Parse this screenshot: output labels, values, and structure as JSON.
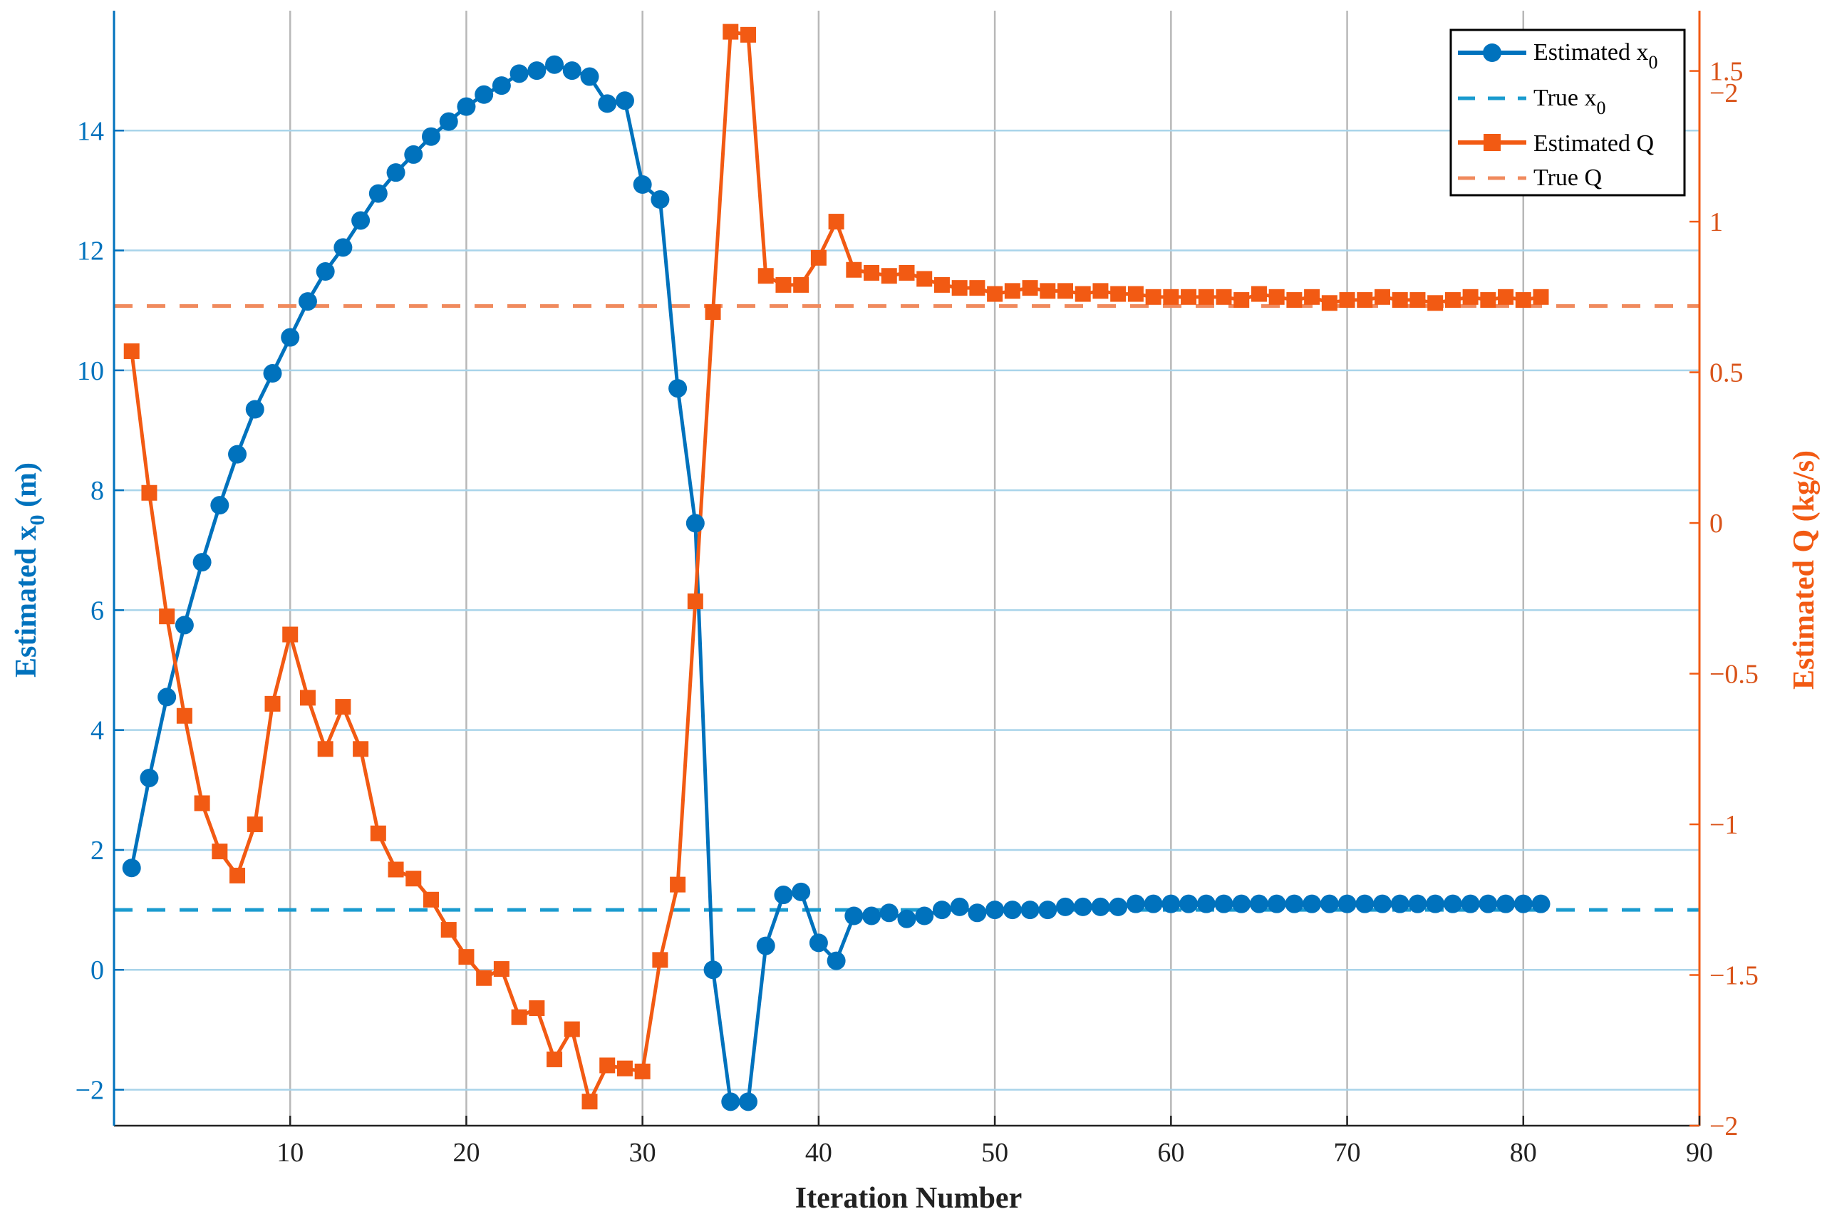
{
  "chart_data": {
    "type": "line",
    "xlabel": "Iteration Number",
    "ylabel_left": "Estimated x",
    "ylabel_left_sub": "0",
    "ylabel_left_unit": " (m)",
    "ylabel_right": "Estimated Q (kg/s)",
    "xlim": [
      0,
      90
    ],
    "xticks": [
      10,
      20,
      30,
      40,
      50,
      60,
      70,
      80,
      90
    ],
    "ylim_left": [
      -2.6,
      16
    ],
    "yticks_left": [
      -2,
      0,
      2,
      4,
      6,
      8,
      10,
      12,
      14
    ],
    "ylim_right": [
      -2.0,
      1.7
    ],
    "yticks_right": [
      -2,
      -1.5,
      -1,
      -0.5,
      0,
      0.5,
      1,
      1.5
    ],
    "right_axis_extra_tick_label": "−2",
    "grid": true,
    "legend_position": "top-right",
    "colors": {
      "x0": "#0072BD",
      "true_x0": "#1A9BCF",
      "q": "#F25A13",
      "true_q": "#F08A5D",
      "grid": "#A9D4EA"
    },
    "series": [
      {
        "name": "Estimated x",
        "name_sub": "0",
        "axis": "left",
        "style": "solid-circle",
        "x": [
          1,
          2,
          3,
          4,
          5,
          6,
          7,
          8,
          9,
          10,
          11,
          12,
          13,
          14,
          15,
          16,
          17,
          18,
          19,
          20,
          21,
          22,
          23,
          24,
          25,
          26,
          27,
          28,
          29,
          30,
          31,
          32,
          33,
          34,
          35,
          36,
          37,
          38,
          39,
          40,
          41,
          42,
          43,
          44,
          45,
          46,
          47,
          48,
          49,
          50,
          51,
          52,
          53,
          54,
          55,
          56,
          57,
          58,
          59,
          60,
          61,
          62,
          63,
          64,
          65,
          66,
          67,
          68,
          69,
          70,
          71,
          72,
          73,
          74,
          75,
          76,
          77,
          78,
          79,
          80,
          81
        ],
        "values": [
          1.7,
          3.2,
          4.55,
          5.75,
          6.8,
          7.75,
          8.6,
          9.35,
          9.95,
          10.55,
          11.15,
          11.65,
          12.05,
          12.5,
          12.95,
          13.3,
          13.6,
          13.9,
          14.15,
          14.4,
          14.6,
          14.75,
          14.95,
          15.0,
          15.1,
          15.0,
          14.9,
          14.45,
          14.5,
          13.1,
          12.85,
          9.7,
          7.45,
          0.0,
          -2.2,
          -2.2,
          0.4,
          1.25,
          1.3,
          0.45,
          0.15,
          0.9,
          0.9,
          0.95,
          0.85,
          0.9,
          1.0,
          1.05,
          0.95,
          1.0,
          1.0,
          1.0,
          1.0,
          1.05,
          1.05,
          1.05,
          1.05,
          1.1,
          1.1,
          1.1,
          1.1,
          1.1,
          1.1,
          1.1,
          1.1,
          1.1,
          1.1,
          1.1,
          1.1,
          1.1,
          1.1,
          1.1,
          1.1,
          1.1,
          1.1,
          1.1,
          1.1,
          1.1,
          1.1,
          1.1,
          1.1
        ]
      },
      {
        "name": "True x",
        "name_sub": "0",
        "axis": "left",
        "style": "dashed",
        "value": 1.0
      },
      {
        "name": "Estimated Q",
        "axis": "right",
        "style": "solid-square",
        "x": [
          1,
          2,
          3,
          4,
          5,
          6,
          7,
          8,
          9,
          10,
          11,
          12,
          13,
          14,
          15,
          16,
          17,
          18,
          19,
          20,
          21,
          22,
          23,
          24,
          25,
          26,
          27,
          28,
          29,
          30,
          31,
          32,
          33,
          34,
          35,
          36,
          37,
          38,
          39,
          40,
          41,
          42,
          43,
          44,
          45,
          46,
          47,
          48,
          49,
          50,
          51,
          52,
          53,
          54,
          55,
          56,
          57,
          58,
          59,
          60,
          61,
          62,
          63,
          64,
          65,
          66,
          67,
          68,
          69,
          70,
          71,
          72,
          73,
          74,
          75,
          76,
          77,
          78,
          79,
          80,
          81
        ],
        "values": [
          0.57,
          0.1,
          -0.31,
          -0.64,
          -0.93,
          -1.09,
          -1.17,
          -1.0,
          -0.6,
          -0.37,
          -0.58,
          -0.75,
          -0.61,
          -0.75,
          -1.03,
          -1.15,
          -1.18,
          -1.25,
          -1.35,
          -1.44,
          -1.51,
          -1.48,
          -1.64,
          -1.61,
          -1.78,
          -1.68,
          -1.92,
          -1.8,
          -1.81,
          -1.82,
          -1.45,
          -1.2,
          -0.26,
          0.7,
          1.63,
          1.62,
          0.82,
          0.79,
          0.79,
          0.88,
          1.0,
          0.84,
          0.83,
          0.82,
          0.83,
          0.81,
          0.79,
          0.78,
          0.78,
          0.76,
          0.77,
          0.78,
          0.77,
          0.77,
          0.76,
          0.77,
          0.76,
          0.76,
          0.75,
          0.75,
          0.75,
          0.75,
          0.75,
          0.74,
          0.76,
          0.75,
          0.74,
          0.75,
          0.73,
          0.74,
          0.74,
          0.75,
          0.74,
          0.74,
          0.73,
          0.74,
          0.75,
          0.74,
          0.75,
          0.74,
          0.75
        ]
      },
      {
        "name": "True Q",
        "axis": "right",
        "style": "dashed",
        "value": 0.72
      }
    ]
  }
}
